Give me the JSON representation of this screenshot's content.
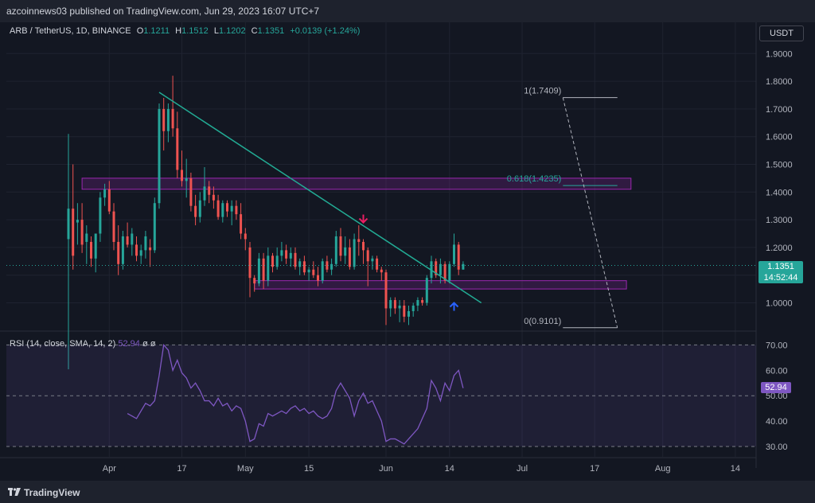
{
  "header": {
    "publisher": "azcoinnews03 published on TradingView.com, Jun 29, 2023 16:07 UTC+7"
  },
  "legend": {
    "symbol": "ARB / TetherUS, 1D, BINANCE",
    "o_label": "O",
    "o": "1.1211",
    "h_label": "H",
    "h": "1.1512",
    "l_label": "L",
    "l": "1.1202",
    "c_label": "C",
    "c": "1.1351",
    "change": "+0.0139 (+1.24%)"
  },
  "currency": "USDT",
  "price_tag": {
    "price": "1.1351",
    "countdown": "14:52:44"
  },
  "rsi_legend": {
    "label": "RSI (14, close, SMA, 14, 2)",
    "value": "52.94",
    "tail": "ø ø"
  },
  "rsi_tag": "52.94",
  "footer": {
    "brand": "TradingView"
  },
  "fib": {
    "l1": "1(1.7409)",
    "l0618": "0.618(1.4235)",
    "l0": "0(0.9101)"
  },
  "colors": {
    "up": "#26a69a",
    "down": "#ef5350",
    "trendline": "#22ab94",
    "zone": "#9c27b0",
    "rsi": "#7e57c2",
    "arrow_down": "#e91e63",
    "arrow_up": "#2962ff"
  },
  "chart_data": [
    {
      "type": "candlestick",
      "title": "ARB / TetherUS, 1D, BINANCE",
      "ylim": [
        0.9,
        1.98
      ],
      "y_ticks": [
        "1.9000",
        "1.8000",
        "1.7000",
        "1.6000",
        "1.5000",
        "1.4000",
        "1.3000",
        "1.2000",
        "1.1000",
        "1.0000"
      ],
      "x_ticks": [
        "Apr",
        "17",
        "May",
        "15",
        "Jun",
        "14",
        "Jul",
        "17",
        "Aug",
        "14"
      ],
      "x_tick_days": [
        9,
        25,
        39,
        53,
        70,
        84,
        100,
        116,
        131,
        147
      ],
      "candles": [
        {
          "d": 0,
          "o": 1.23,
          "h": 1.61,
          "l": 0.76,
          "c": 1.34
        },
        {
          "d": 1,
          "o": 1.34,
          "h": 1.5,
          "l": 1.12,
          "c": 1.17
        },
        {
          "d": 2,
          "o": 1.29,
          "h": 1.36,
          "l": 1.21,
          "c": 1.3
        },
        {
          "d": 3,
          "o": 1.3,
          "h": 1.36,
          "l": 1.18,
          "c": 1.21
        },
        {
          "d": 4,
          "o": 1.22,
          "h": 1.28,
          "l": 1.14,
          "c": 1.25
        },
        {
          "d": 5,
          "o": 1.22,
          "h": 1.24,
          "l": 1.13,
          "c": 1.16
        },
        {
          "d": 6,
          "o": 1.16,
          "h": 1.24,
          "l": 1.11,
          "c": 1.25
        },
        {
          "d": 7,
          "o": 1.25,
          "h": 1.4,
          "l": 1.22,
          "c": 1.38
        },
        {
          "d": 8,
          "o": 1.38,
          "h": 1.43,
          "l": 1.35,
          "c": 1.41
        },
        {
          "d": 9,
          "o": 1.41,
          "h": 1.44,
          "l": 1.32,
          "c": 1.33
        },
        {
          "d": 10,
          "o": 1.33,
          "h": 1.36,
          "l": 1.19,
          "c": 1.22
        },
        {
          "d": 11,
          "o": 1.22,
          "h": 1.28,
          "l": 1.1,
          "c": 1.14
        },
        {
          "d": 12,
          "o": 1.14,
          "h": 1.26,
          "l": 1.12,
          "c": 1.24
        },
        {
          "d": 13,
          "o": 1.24,
          "h": 1.29,
          "l": 1.2,
          "c": 1.21
        },
        {
          "d": 14,
          "o": 1.21,
          "h": 1.27,
          "l": 1.17,
          "c": 1.25
        },
        {
          "d": 15,
          "o": 1.21,
          "h": 1.24,
          "l": 1.15,
          "c": 1.17
        },
        {
          "d": 16,
          "o": 1.17,
          "h": 1.21,
          "l": 1.14,
          "c": 1.19
        },
        {
          "d": 17,
          "o": 1.19,
          "h": 1.26,
          "l": 1.16,
          "c": 1.24
        },
        {
          "d": 18,
          "o": 1.2,
          "h": 1.23,
          "l": 1.13,
          "c": 1.19
        },
        {
          "d": 19,
          "o": 1.19,
          "h": 1.38,
          "l": 1.18,
          "c": 1.36
        },
        {
          "d": 20,
          "o": 1.36,
          "h": 1.72,
          "l": 1.34,
          "c": 1.7
        },
        {
          "d": 21,
          "o": 1.7,
          "h": 1.74,
          "l": 1.55,
          "c": 1.62
        },
        {
          "d": 22,
          "o": 1.62,
          "h": 1.72,
          "l": 1.58,
          "c": 1.7
        },
        {
          "d": 23,
          "o": 1.7,
          "h": 1.82,
          "l": 1.6,
          "c": 1.63
        },
        {
          "d": 24,
          "o": 1.63,
          "h": 1.69,
          "l": 1.45,
          "c": 1.48
        },
        {
          "d": 25,
          "o": 1.48,
          "h": 1.55,
          "l": 1.42,
          "c": 1.44
        },
        {
          "d": 26,
          "o": 1.44,
          "h": 1.52,
          "l": 1.38,
          "c": 1.45
        },
        {
          "d": 27,
          "o": 1.45,
          "h": 1.47,
          "l": 1.33,
          "c": 1.35
        },
        {
          "d": 28,
          "o": 1.35,
          "h": 1.39,
          "l": 1.28,
          "c": 1.31
        },
        {
          "d": 29,
          "o": 1.31,
          "h": 1.4,
          "l": 1.29,
          "c": 1.37
        },
        {
          "d": 30,
          "o": 1.37,
          "h": 1.49,
          "l": 1.35,
          "c": 1.42
        },
        {
          "d": 31,
          "o": 1.42,
          "h": 1.44,
          "l": 1.36,
          "c": 1.39
        },
        {
          "d": 32,
          "o": 1.39,
          "h": 1.42,
          "l": 1.34,
          "c": 1.37
        },
        {
          "d": 33,
          "o": 1.37,
          "h": 1.39,
          "l": 1.3,
          "c": 1.31
        },
        {
          "d": 34,
          "o": 1.31,
          "h": 1.37,
          "l": 1.29,
          "c": 1.36
        },
        {
          "d": 35,
          "o": 1.36,
          "h": 1.37,
          "l": 1.31,
          "c": 1.33
        },
        {
          "d": 36,
          "o": 1.33,
          "h": 1.37,
          "l": 1.28,
          "c": 1.35
        },
        {
          "d": 37,
          "o": 1.35,
          "h": 1.37,
          "l": 1.3,
          "c": 1.32
        },
        {
          "d": 38,
          "o": 1.32,
          "h": 1.36,
          "l": 1.23,
          "c": 1.25
        },
        {
          "d": 39,
          "o": 1.25,
          "h": 1.27,
          "l": 1.19,
          "c": 1.23
        },
        {
          "d": 40,
          "o": 1.2,
          "h": 1.22,
          "l": 1.02,
          "c": 1.09
        },
        {
          "d": 41,
          "o": 1.09,
          "h": 1.1,
          "l": 1.04,
          "c": 1.07
        },
        {
          "d": 42,
          "o": 1.07,
          "h": 1.18,
          "l": 1.06,
          "c": 1.16
        },
        {
          "d": 43,
          "o": 1.16,
          "h": 1.18,
          "l": 1.05,
          "c": 1.08
        },
        {
          "d": 44,
          "o": 1.08,
          "h": 1.2,
          "l": 1.06,
          "c": 1.17
        },
        {
          "d": 45,
          "o": 1.17,
          "h": 1.18,
          "l": 1.11,
          "c": 1.13
        },
        {
          "d": 46,
          "o": 1.13,
          "h": 1.2,
          "l": 1.12,
          "c": 1.17
        },
        {
          "d": 47,
          "o": 1.17,
          "h": 1.22,
          "l": 1.15,
          "c": 1.19
        },
        {
          "d": 48,
          "o": 1.19,
          "h": 1.21,
          "l": 1.14,
          "c": 1.16
        },
        {
          "d": 49,
          "o": 1.16,
          "h": 1.2,
          "l": 1.13,
          "c": 1.18
        },
        {
          "d": 50,
          "o": 1.18,
          "h": 1.2,
          "l": 1.12,
          "c": 1.13
        },
        {
          "d": 51,
          "o": 1.13,
          "h": 1.16,
          "l": 1.1,
          "c": 1.15
        },
        {
          "d": 52,
          "o": 1.15,
          "h": 1.17,
          "l": 1.1,
          "c": 1.11
        },
        {
          "d": 53,
          "o": 1.11,
          "h": 1.13,
          "l": 1.08,
          "c": 1.12
        },
        {
          "d": 54,
          "o": 1.12,
          "h": 1.15,
          "l": 1.09,
          "c": 1.1
        },
        {
          "d": 55,
          "o": 1.1,
          "h": 1.13,
          "l": 1.06,
          "c": 1.08
        },
        {
          "d": 56,
          "o": 1.08,
          "h": 1.16,
          "l": 1.07,
          "c": 1.15
        },
        {
          "d": 57,
          "o": 1.15,
          "h": 1.17,
          "l": 1.11,
          "c": 1.12
        },
        {
          "d": 58,
          "o": 1.12,
          "h": 1.16,
          "l": 1.1,
          "c": 1.14
        },
        {
          "d": 59,
          "o": 1.14,
          "h": 1.26,
          "l": 1.13,
          "c": 1.24
        },
        {
          "d": 60,
          "o": 1.24,
          "h": 1.27,
          "l": 1.15,
          "c": 1.17
        },
        {
          "d": 61,
          "o": 1.17,
          "h": 1.24,
          "l": 1.14,
          "c": 1.2
        },
        {
          "d": 62,
          "o": 1.2,
          "h": 1.23,
          "l": 1.12,
          "c": 1.13
        },
        {
          "d": 63,
          "o": 1.13,
          "h": 1.25,
          "l": 1.12,
          "c": 1.23
        },
        {
          "d": 64,
          "o": 1.23,
          "h": 1.28,
          "l": 1.17,
          "c": 1.22
        },
        {
          "d": 65,
          "o": 1.22,
          "h": 1.23,
          "l": 1.14,
          "c": 1.19
        },
        {
          "d": 66,
          "o": 1.19,
          "h": 1.2,
          "l": 1.06,
          "c": 1.15
        },
        {
          "d": 67,
          "o": 1.15,
          "h": 1.17,
          "l": 1.12,
          "c": 1.16
        },
        {
          "d": 68,
          "o": 1.16,
          "h": 1.17,
          "l": 1.11,
          "c": 1.12
        },
        {
          "d": 69,
          "o": 1.12,
          "h": 1.13,
          "l": 1.08,
          "c": 1.11
        },
        {
          "d": 70,
          "o": 1.11,
          "h": 1.12,
          "l": 0.92,
          "c": 0.98
        },
        {
          "d": 71,
          "o": 0.98,
          "h": 1.02,
          "l": 0.95,
          "c": 1.01
        },
        {
          "d": 72,
          "o": 1.01,
          "h": 1.02,
          "l": 0.96,
          "c": 0.98
        },
        {
          "d": 73,
          "o": 0.98,
          "h": 1.01,
          "l": 0.93,
          "c": 0.99
        },
        {
          "d": 74,
          "o": 0.99,
          "h": 1.01,
          "l": 0.93,
          "c": 0.95
        },
        {
          "d": 75,
          "o": 0.95,
          "h": 0.99,
          "l": 0.92,
          "c": 0.97
        },
        {
          "d": 76,
          "o": 0.97,
          "h": 1.0,
          "l": 0.95,
          "c": 0.99
        },
        {
          "d": 77,
          "o": 0.99,
          "h": 1.02,
          "l": 0.97,
          "c": 1.01
        },
        {
          "d": 78,
          "o": 1.01,
          "h": 1.02,
          "l": 0.99,
          "c": 1.0
        },
        {
          "d": 79,
          "o": 1.0,
          "h": 1.1,
          "l": 0.99,
          "c": 1.09
        },
        {
          "d": 80,
          "o": 1.09,
          "h": 1.17,
          "l": 1.07,
          "c": 1.15
        },
        {
          "d": 81,
          "o": 1.15,
          "h": 1.16,
          "l": 1.09,
          "c": 1.1
        },
        {
          "d": 82,
          "o": 1.1,
          "h": 1.16,
          "l": 1.07,
          "c": 1.14
        },
        {
          "d": 83,
          "o": 1.14,
          "h": 1.15,
          "l": 1.07,
          "c": 1.08
        },
        {
          "d": 84,
          "o": 1.08,
          "h": 1.15,
          "l": 1.07,
          "c": 1.14
        },
        {
          "d": 85,
          "o": 1.14,
          "h": 1.25,
          "l": 1.13,
          "c": 1.21
        },
        {
          "d": 86,
          "o": 1.21,
          "h": 1.22,
          "l": 1.1,
          "c": 1.12
        },
        {
          "d": 87,
          "o": 1.12,
          "h": 1.15,
          "l": 1.12,
          "c": 1.14
        }
      ],
      "trendline": [
        {
          "d": 20,
          "y": 1.76
        },
        {
          "d": 91,
          "y": 1.0
        }
      ],
      "zones": [
        {
          "d0": 3,
          "d1": 124,
          "top": 1.45,
          "bottom": 1.41
        },
        {
          "d0": 41,
          "d1": 123,
          "top": 1.08,
          "bottom": 1.05
        }
      ],
      "fib_levels": [
        {
          "d0": 109,
          "d1": 121,
          "y": 1.7409
        },
        {
          "d0": 109,
          "d1": 121,
          "y": 1.4235
        },
        {
          "d0": 109,
          "d1": 121,
          "y": 0.9101
        }
      ],
      "fib_diagonal": [
        {
          "d": 109,
          "y": 1.7409
        },
        {
          "d": 121,
          "y": 0.9101
        }
      ],
      "last_price": 1.1351,
      "arrows": [
        {
          "type": "down",
          "d": 65,
          "y": 1.29
        },
        {
          "type": "up",
          "d": 85,
          "y": 1.0
        }
      ]
    },
    {
      "type": "line",
      "title": "RSI (14, close, SMA, 14, 2)",
      "ylim": [
        30,
        70
      ],
      "y_ticks": [
        "70.00",
        "60.00",
        "50.00",
        "40.00",
        "30.00"
      ],
      "band": [
        30,
        70
      ],
      "mid_line": 50,
      "x": [
        13,
        14,
        15,
        16,
        17,
        18,
        19,
        20,
        21,
        22,
        23,
        24,
        25,
        26,
        27,
        28,
        29,
        30,
        31,
        32,
        33,
        34,
        35,
        36,
        37,
        38,
        39,
        40,
        41,
        42,
        43,
        44,
        45,
        46,
        47,
        48,
        49,
        50,
        51,
        52,
        53,
        54,
        55,
        56,
        57,
        58,
        59,
        60,
        61,
        62,
        63,
        64,
        65,
        66,
        67,
        68,
        69,
        70,
        71,
        72,
        73,
        74,
        75,
        76,
        77,
        78,
        79,
        80,
        81,
        82,
        83,
        84,
        85,
        86,
        87
      ],
      "y": [
        43,
        42,
        41,
        44,
        47,
        46,
        48,
        58,
        70,
        68,
        60,
        64,
        59,
        57,
        53,
        55,
        52,
        48,
        48,
        46,
        49,
        46,
        47,
        44,
        46,
        45,
        40,
        32,
        33,
        39,
        38,
        43,
        42,
        43,
        44,
        43,
        45,
        46,
        44,
        45,
        43,
        44,
        42,
        41,
        42,
        45,
        52,
        55,
        52,
        49,
        42,
        48,
        51,
        47,
        48,
        44,
        40,
        32,
        33,
        33,
        32,
        31,
        33,
        35,
        37,
        41,
        45,
        56,
        53,
        48,
        55,
        52,
        58,
        60,
        53
      ]
    }
  ]
}
